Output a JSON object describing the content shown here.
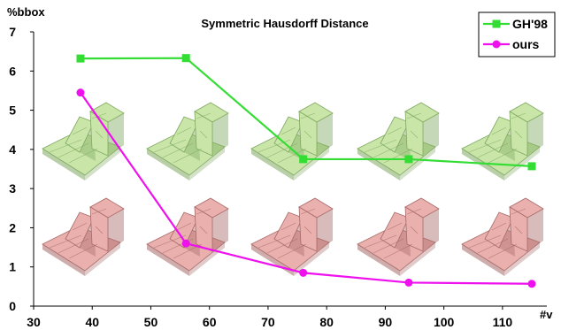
{
  "chart_data": {
    "type": "line",
    "title": "Symmetric Hausdorff Distance",
    "ylabel": "%bbox",
    "xlabel": "#v",
    "xlim": [
      30,
      115
    ],
    "ylim": [
      0,
      7
    ],
    "xticks": [
      30,
      40,
      50,
      60,
      70,
      80,
      90,
      100,
      110
    ],
    "yticks": [
      0,
      1,
      2,
      3,
      4,
      5,
      6,
      7
    ],
    "grid": false,
    "legend_position": "top-right",
    "series": [
      {
        "name": "GH'98",
        "marker": "square",
        "color": "#33dd33",
        "x": [
          38,
          56,
          76,
          94,
          115
        ],
        "y": [
          6.32,
          6.33,
          3.75,
          3.75,
          3.57
        ]
      },
      {
        "name": "ours",
        "marker": "circle",
        "color": "#ee11ee",
        "x": [
          38,
          56,
          76,
          94,
          115
        ],
        "y": [
          5.45,
          1.6,
          0.85,
          0.6,
          0.57
        ]
      }
    ]
  },
  "colors": {
    "green_model": "#c9e6a8",
    "green_model_edge": "#7fa860",
    "red_model": "#e9b0ae",
    "red_model_edge": "#a86a68"
  }
}
